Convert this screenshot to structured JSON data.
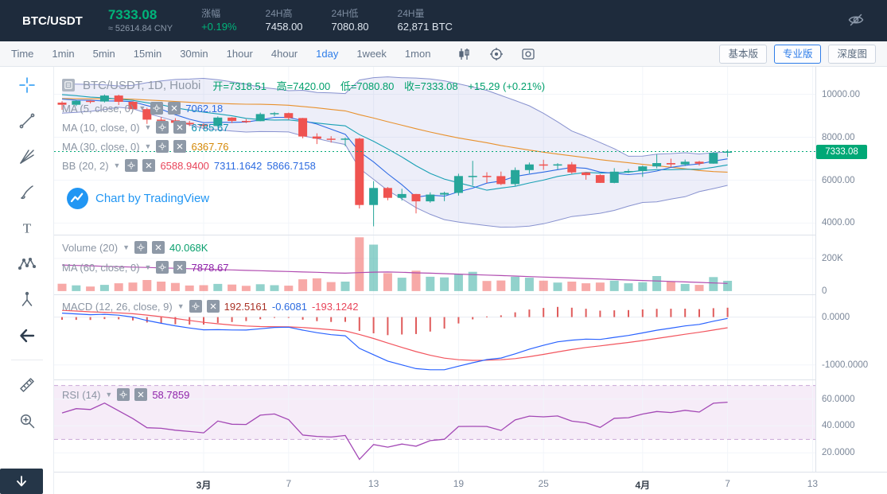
{
  "header": {
    "symbol": "BTC/USDT",
    "price": "7333.08",
    "price_cny": "≈ 52614.84 CNY",
    "stats": [
      {
        "label": "涨幅",
        "value": "+0.19%"
      },
      {
        "label": "24H高",
        "value": "7458.00"
      },
      {
        "label": "24H低",
        "value": "7080.80"
      },
      {
        "label": "24H量",
        "value": "62,871 BTC"
      }
    ]
  },
  "toolbar": {
    "intervals": [
      "Time",
      "1min",
      "5min",
      "15min",
      "30min",
      "1hour",
      "4hour",
      "1day",
      "1week",
      "1mon"
    ],
    "active_interval": "1day",
    "view_buttons": [
      {
        "label": "基本版",
        "active": false
      },
      {
        "label": "专业版",
        "active": true
      },
      {
        "label": "深度图",
        "active": false
      }
    ]
  },
  "icons": {
    "header_right": "eye-off-icon",
    "toolbar": [
      "kline-style-icon",
      "indicator-icon",
      "screenshot-icon"
    ],
    "sidebar_tools": [
      "crosshair-tool-icon",
      "trend-line-tool-icon",
      "gann-tool-icon",
      "brush-tool-icon",
      "text-tool-icon",
      "pattern-tool-icon",
      "forecast-tool-icon",
      "back-arrow-icon",
      "ruler-tool-icon",
      "zoom-tool-icon",
      "scroll-down-icon"
    ]
  },
  "legend": {
    "title": "BTC/USDT, 1D, Huobi",
    "open": "开=7318.51",
    "high": "高=7420.00",
    "low": "低=7080.80",
    "close": "收=7333.08",
    "change": "+15.29 (+0.21%)",
    "indicators": {
      "ma5": {
        "label": "MA (5, close, 0)",
        "value": "7062.18"
      },
      "ma10": {
        "label": "MA (10, close, 0)",
        "value": "6785.67"
      },
      "ma30": {
        "label": "MA (30, close, 0)",
        "value": "6367.76"
      },
      "bb": {
        "label": "BB (20, 2)",
        "values": [
          "6588.9400",
          "7311.1642",
          "5866.7158"
        ]
      },
      "volume": {
        "label": "Volume (20)",
        "value": "40.068K"
      },
      "vol_ma": {
        "label": "MA (60, close, 0)",
        "value": "7878.67"
      },
      "macd": {
        "label": "MACD (12, 26, close, 9)",
        "values": [
          "192.5161",
          "-0.6081",
          "-193.1242"
        ]
      },
      "rsi": {
        "label": "RSI (14)",
        "value": "58.7859"
      }
    }
  },
  "attribution": "Chart by TradingView",
  "price_tag": "7333.08",
  "colors": {
    "up": "#26a69a",
    "down": "#ef5350",
    "price_green": "#00a876",
    "accent_blue": "#2e7de9",
    "macd_line": "#2962ff",
    "macd_signal": "#f2555e",
    "rsi_line": "#a348b5",
    "volume_ma": "#b04bb0",
    "bollinger": "#8892cf"
  },
  "chart_data": {
    "type": "candlestick",
    "symbol": "BTC/USDT",
    "interval": "1D",
    "exchange": "Huobi",
    "panels": {
      "main": {
        "ymin": 3460,
        "ymax": 11280,
        "ticks": [
          10000,
          8000,
          6000,
          4000
        ],
        "tick_labels": [
          "10000.00",
          "8000.00",
          "6000.00",
          "4000.00"
        ],
        "current_price": 7333.08
      },
      "volume": {
        "ymin": -20,
        "ymax": 346,
        "ticks": [
          200,
          0
        ],
        "tick_labels": [
          "200K",
          "0"
        ]
      },
      "macd": {
        "ymin": -1305,
        "ymax": 475,
        "ticks": [
          0,
          -1000
        ],
        "tick_labels": [
          "0.0000",
          "-1000.0000"
        ]
      },
      "rsi": {
        "ymin": 6,
        "ymax": 74.5,
        "ticks": [
          60,
          40,
          20
        ],
        "tick_labels": [
          "60.0000",
          "40.0000",
          "20.0000"
        ],
        "bands": [
          70,
          30
        ]
      }
    },
    "time_ticks": [
      {
        "i": 10,
        "label": "3月"
      },
      {
        "i": 16,
        "label": "7"
      },
      {
        "i": 22,
        "label": "13"
      },
      {
        "i": 28,
        "label": "19"
      },
      {
        "i": 34,
        "label": "25"
      },
      {
        "i": 41,
        "label": "4月"
      },
      {
        "i": 47,
        "label": "7"
      },
      {
        "i": 53,
        "label": "13"
      }
    ],
    "history_closes": [
      9392,
      9344,
      9293,
      9180,
      9613,
      9724,
      9795,
      9865,
      10116,
      9856,
      10208,
      10326,
      10240,
      10312,
      9889,
      9934,
      9690,
      10141,
      9612
    ],
    "candles": [
      [
        "2-20",
        9612,
        9675,
        9280,
        9513,
        45
      ],
      [
        "2-21",
        9513,
        9730,
        9450,
        9696,
        35
      ],
      [
        "2-22",
        9696,
        9720,
        9570,
        9663,
        28
      ],
      [
        "2-23",
        9663,
        9990,
        9620,
        9941,
        38
      ],
      [
        "2-24",
        9941,
        9980,
        9500,
        9650,
        48
      ],
      [
        "2-25",
        9650,
        9680,
        9230,
        9310,
        52
      ],
      [
        "2-26",
        9310,
        9370,
        8620,
        8820,
        68
      ],
      [
        "2-27",
        8820,
        8930,
        8530,
        8784,
        58
      ],
      [
        "2-28",
        8784,
        8890,
        8460,
        8672,
        50
      ],
      [
        "2-29",
        8672,
        8760,
        8520,
        8599,
        34
      ],
      [
        "3-1",
        8599,
        8640,
        8410,
        8523,
        36
      ],
      [
        "3-2",
        8523,
        8970,
        8480,
        8915,
        44
      ],
      [
        "3-3",
        8915,
        8935,
        8660,
        8760,
        40
      ],
      [
        "3-4",
        8760,
        8845,
        8660,
        8750,
        32
      ],
      [
        "3-5",
        8750,
        9145,
        8740,
        9078,
        42
      ],
      [
        "3-6",
        9078,
        9180,
        8980,
        9122,
        36
      ],
      [
        "3-7",
        9122,
        9150,
        8820,
        8893,
        33
      ],
      [
        "3-8",
        8893,
        8900,
        7950,
        8033,
        72
      ],
      [
        "3-9",
        8033,
        8180,
        7680,
        7935,
        78
      ],
      [
        "3-10",
        7935,
        8050,
        7750,
        7889,
        55
      ],
      [
        "3-11",
        7889,
        7980,
        7580,
        7938,
        58
      ],
      [
        "3-12",
        7938,
        7969,
        4680,
        4841,
        330
      ],
      [
        "3-13",
        4841,
        5954,
        3850,
        5637,
        285
      ],
      [
        "3-14",
        5637,
        5680,
        5060,
        5175,
        110
      ],
      [
        "3-15",
        5175,
        5600,
        5050,
        5354,
        82
      ],
      [
        "3-16",
        5354,
        5360,
        4455,
        5014,
        125
      ],
      [
        "3-17",
        5014,
        5430,
        4950,
        5327,
        88
      ],
      [
        "3-18",
        5327,
        5460,
        5020,
        5405,
        84
      ],
      [
        "3-19",
        5405,
        6300,
        5280,
        6191,
        105
      ],
      [
        "3-20",
        6191,
        6900,
        5750,
        6198,
        118
      ],
      [
        "3-21",
        6198,
        6370,
        5870,
        6186,
        62
      ],
      [
        "3-22",
        6186,
        6400,
        5770,
        5816,
        65
      ],
      [
        "3-23",
        5816,
        6590,
        5740,
        6469,
        88
      ],
      [
        "3-24",
        6469,
        6820,
        6315,
        6734,
        82
      ],
      [
        "3-25",
        6734,
        6950,
        6480,
        6681,
        64
      ],
      [
        "3-26",
        6681,
        6790,
        6500,
        6738,
        52
      ],
      [
        "3-27",
        6738,
        6845,
        6300,
        6361,
        58
      ],
      [
        "3-28",
        6361,
        6370,
        6020,
        6235,
        48
      ],
      [
        "3-29",
        6235,
        6270,
        5870,
        5873,
        52
      ],
      [
        "3-30",
        5873,
        6560,
        5855,
        6394,
        64
      ],
      [
        "3-31",
        6394,
        6520,
        6330,
        6424,
        48
      ],
      [
        "4-1",
        6424,
        6680,
        6150,
        6640,
        54
      ],
      [
        "4-2",
        6640,
        7200,
        6550,
        6794,
        92
      ],
      [
        "4-3",
        6794,
        7000,
        6610,
        6733,
        58
      ],
      [
        "4-4",
        6733,
        6960,
        6660,
        6859,
        44
      ],
      [
        "4-5",
        6859,
        6900,
        6680,
        6770,
        38
      ],
      [
        "4-6",
        6770,
        7310,
        6765,
        7271,
        86
      ],
      [
        "4-7",
        7318.51,
        7420,
        7080.8,
        7333.08,
        63
      ]
    ],
    "volume_ma_line": [
      160,
      157,
      155,
      152,
      150,
      147,
      145,
      142,
      140,
      137,
      135,
      132,
      130,
      127,
      125,
      122,
      120,
      117,
      115,
      112,
      110,
      113,
      116,
      117,
      115,
      112,
      110,
      107,
      104,
      101,
      98,
      95,
      92,
      89,
      86,
      83,
      80,
      77,
      74,
      71,
      68,
      65,
      62,
      59,
      56,
      53,
      50,
      47
    ]
  }
}
